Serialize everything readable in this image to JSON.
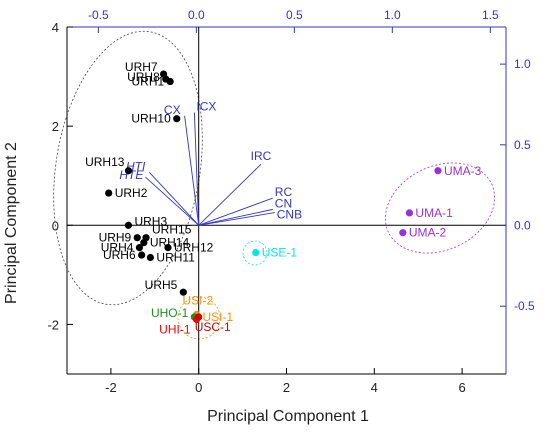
{
  "chart_data": {
    "type": "scatter",
    "title": "",
    "xlabel": "Principal Component 1",
    "ylabel": "Principal Component 2",
    "xlim": [
      -3,
      7
    ],
    "ylim": [
      -3,
      4
    ],
    "x_ticks": [
      "-2",
      "0",
      "2",
      "4",
      "6"
    ],
    "x_tick_values": [
      -2,
      0,
      2,
      4,
      6
    ],
    "y_ticks": [
      "-2",
      "0",
      "2",
      "4"
    ],
    "y_tick_values": [
      -2,
      0,
      2,
      4
    ],
    "top_axis": {
      "range": [
        -0.66,
        1.58
      ],
      "ticks": [
        "-0.5",
        "0.0",
        "0.5",
        "1.0",
        "1.5"
      ],
      "tick_values": [
        -0.5,
        0.0,
        0.5,
        1.0,
        1.5
      ],
      "color": "#3333cc"
    },
    "right_axis": {
      "range": [
        -0.92,
        1.23
      ],
      "ticks": [
        "-0.5",
        "0.0",
        "0.5",
        "1.0"
      ],
      "tick_values": [
        -0.5,
        0.0,
        0.5,
        1.0
      ],
      "color": "#3333cc"
    },
    "points": [
      {
        "label": "URH7",
        "x": -0.8,
        "y": 3.05,
        "color": "#000000"
      },
      {
        "label": "URH8",
        "x": -0.75,
        "y": 2.95,
        "color": "#000000"
      },
      {
        "label": "URH1",
        "x": -0.65,
        "y": 2.9,
        "color": "#000000"
      },
      {
        "label": "URH10",
        "x": -0.5,
        "y": 2.15,
        "color": "#000000"
      },
      {
        "label": "URH13",
        "x": -1.6,
        "y": 1.1,
        "color": "#000000"
      },
      {
        "label": "URH2",
        "x": -2.05,
        "y": 0.65,
        "color": "#000000"
      },
      {
        "label": "URH3",
        "x": -1.6,
        "y": 0.0,
        "color": "#000000"
      },
      {
        "label": "URH9",
        "x": -1.4,
        "y": -0.25,
        "color": "#000000"
      },
      {
        "label": "URH15",
        "x": -1.2,
        "y": -0.25,
        "color": "#000000"
      },
      {
        "label": "URH14",
        "x": -1.25,
        "y": -0.35,
        "color": "#000000"
      },
      {
        "label": "URH4",
        "x": -1.35,
        "y": -0.45,
        "color": "#000000"
      },
      {
        "label": "URH12",
        "x": -0.7,
        "y": -0.45,
        "color": "#000000"
      },
      {
        "label": "URH6",
        "x": -1.3,
        "y": -0.6,
        "color": "#000000"
      },
      {
        "label": "URH11",
        "x": -1.1,
        "y": -0.65,
        "color": "#000000"
      },
      {
        "label": "URH5",
        "x": -0.35,
        "y": -1.35,
        "color": "#000000"
      },
      {
        "label": "USE-1",
        "x": 1.3,
        "y": -0.55,
        "color": "#00e5ee"
      },
      {
        "label": "USI-2",
        "x": -0.05,
        "y": -1.8,
        "color": "#ff8c00"
      },
      {
        "label": "USI-1",
        "x": -0.05,
        "y": -1.85,
        "color": "#ff8c00"
      },
      {
        "label": "UHO-1",
        "x": -0.1,
        "y": -1.85,
        "color": "#228b22"
      },
      {
        "label": "UHI-1",
        "x": -0.05,
        "y": -1.9,
        "color": "#ff0000"
      },
      {
        "label": "USC-1",
        "x": 0.0,
        "y": -1.85,
        "color": "#cc0000"
      },
      {
        "label": "UMA-3",
        "x": 5.45,
        "y": 1.1,
        "color": "#9b30d9"
      },
      {
        "label": "UMA-1",
        "x": 4.8,
        "y": 0.25,
        "color": "#9b30d9"
      },
      {
        "label": "UMA-2",
        "x": 4.65,
        "y": -0.15,
        "color": "#9b30d9"
      }
    ],
    "loadings": [
      {
        "label": "CX",
        "x": -0.06,
        "y": 0.68
      },
      {
        "label": "ICX",
        "x": -0.01,
        "y": 0.7
      },
      {
        "label": "HTI",
        "x": -0.24,
        "y": 0.33
      },
      {
        "label": "HTE",
        "x": -0.26,
        "y": 0.3
      },
      {
        "label": "IRC",
        "x": 0.33,
        "y": 0.38
      },
      {
        "label": "RC",
        "x": 0.39,
        "y": 0.17
      },
      {
        "label": "CN",
        "x": 0.39,
        "y": 0.1
      },
      {
        "label": "CNB",
        "x": 0.4,
        "y": 0.08
      }
    ],
    "loading_color": "#3333cc"
  }
}
